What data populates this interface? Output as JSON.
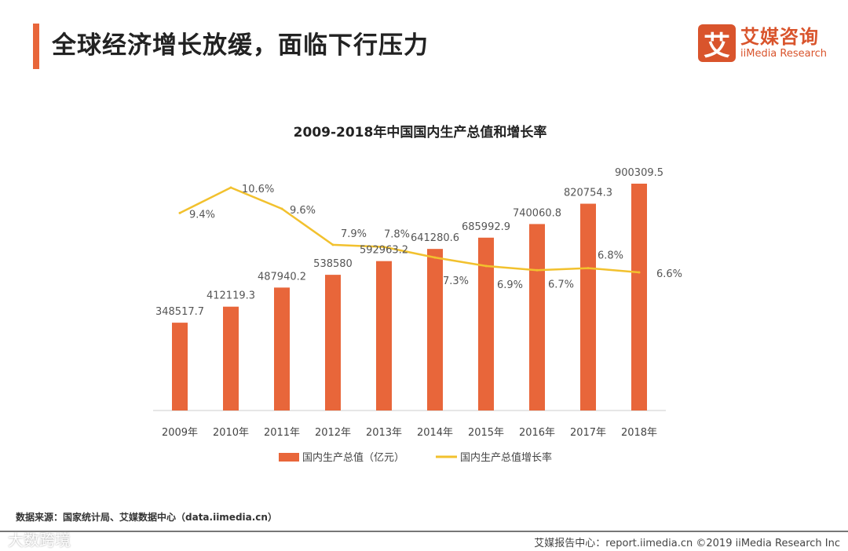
{
  "header": {
    "title": "全球经济增长放缓，面临下行压力"
  },
  "logo": {
    "mark": "艾",
    "cn": "艾媒咨询",
    "en": "iiMedia Research"
  },
  "colors": {
    "bar": "#e8663a",
    "line": "#f2c12e",
    "accent": "#e8663a"
  },
  "chart_data": {
    "type": "bar",
    "title": "2009-2018年中国国内生产总值和增长率",
    "categories": [
      "2009年",
      "2010年",
      "2011年",
      "2012年",
      "2013年",
      "2014年",
      "2015年",
      "2016年",
      "2017年",
      "2018年"
    ],
    "series": [
      {
        "name": "国内生产总值（亿元）",
        "type": "bar",
        "values": [
          348517.7,
          412119.3,
          487940.2,
          538580,
          592963.2,
          641280.6,
          685992.9,
          740060.8,
          820754.3,
          900309.5
        ],
        "labels": [
          "348517.7",
          "412119.3",
          "487940.2",
          "538580",
          "592963.2",
          "641280.6",
          "685992.9",
          "740060.8",
          "820754.3",
          "900309.5"
        ]
      },
      {
        "name": "国内生产总值增长率",
        "type": "line",
        "values": [
          9.4,
          10.6,
          9.6,
          7.9,
          7.8,
          7.3,
          6.9,
          6.7,
          6.8,
          6.6
        ],
        "labels": [
          "9.4%",
          "10.6%",
          "9.6%",
          "7.9%",
          "7.8%",
          "7.3%",
          "6.9%",
          "6.7%",
          "6.8%",
          "6.6%"
        ]
      }
    ],
    "legend": "bottom",
    "grid": false
  },
  "footer": {
    "source": "数据来源：国家统计局、艾媒数据中心（data.iimedia.cn）",
    "watermark": "大数跨境",
    "report": "艾媒报告中心：report.iimedia.cn   ©2019  iiMedia Research  Inc"
  }
}
